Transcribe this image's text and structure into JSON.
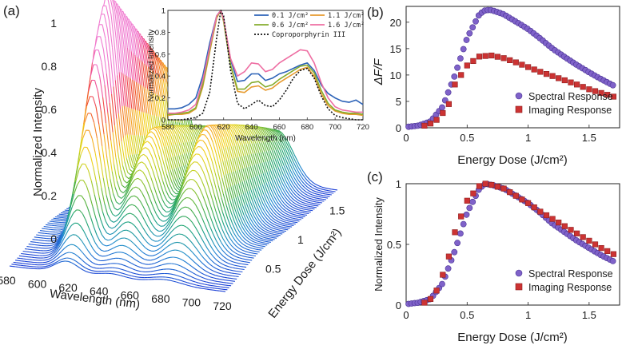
{
  "figure": {
    "panel_labels": [
      "(a)",
      "(b)",
      "(c)"
    ]
  },
  "chart_data": [
    {
      "id": "a",
      "type": "line",
      "subtype": "3d-waterfall",
      "title": "",
      "xlabel": "Wavelength (nm)",
      "ylabel": "Normalized Intensity",
      "zlabel": "Energy Dose (J/cm²)",
      "xticks": [
        "580",
        "600",
        "620",
        "640",
        "660",
        "680",
        "700",
        "720"
      ],
      "yticks": [
        "0",
        "0.2",
        "0.4",
        "0.6",
        "0.8",
        "1"
      ],
      "zticks": [
        "0.5",
        "1",
        "1.5"
      ],
      "x_range": [
        580,
        720
      ],
      "y_range": [
        0,
        1
      ],
      "z_range": [
        0,
        1.75
      ],
      "curve_count": 60,
      "colormap": [
        "#1a3cd6",
        "#1f8ad0",
        "#1aa37a",
        "#55b23b",
        "#b6cf25",
        "#f2d21b",
        "#f59a25",
        "#ef4a2b",
        "#f04a8f",
        "#f07ad0"
      ]
    },
    {
      "id": "a-inset",
      "type": "line",
      "xlabel": "Wavelength (nm)",
      "ylabel": "Normalized Intensity",
      "xticks": [
        "580",
        "600",
        "620",
        "640",
        "660",
        "680",
        "700",
        "720"
      ],
      "yticks": [
        "0",
        "0.2",
        "0.4",
        "0.6",
        "0.8",
        "1"
      ],
      "xlim": [
        580,
        720
      ],
      "ylim": [
        0,
        1
      ],
      "x": [
        580,
        585,
        590,
        595,
        600,
        605,
        610,
        615,
        618,
        620,
        625,
        630,
        635,
        640,
        645,
        650,
        655,
        660,
        665,
        670,
        675,
        680,
        685,
        690,
        695,
        700,
        705,
        710,
        715,
        720
      ],
      "series": [
        {
          "name": "0.1 J/cm²",
          "color": "#2d63b8",
          "dash": false,
          "values": [
            0.1,
            0.1,
            0.11,
            0.14,
            0.2,
            0.4,
            0.7,
            0.95,
            1.0,
            0.92,
            0.55,
            0.35,
            0.36,
            0.42,
            0.42,
            0.36,
            0.38,
            0.42,
            0.44,
            0.47,
            0.5,
            0.52,
            0.45,
            0.32,
            0.24,
            0.2,
            0.17,
            0.16,
            0.18,
            0.14
          ]
        },
        {
          "name": "1.1 J/cm²",
          "color": "#e69a2e",
          "dash": false,
          "values": [
            0.04,
            0.05,
            0.05,
            0.06,
            0.1,
            0.3,
            0.62,
            0.93,
            1.0,
            0.9,
            0.5,
            0.26,
            0.25,
            0.3,
            0.31,
            0.27,
            0.29,
            0.34,
            0.38,
            0.42,
            0.46,
            0.48,
            0.4,
            0.24,
            0.13,
            0.08,
            0.06,
            0.05,
            0.05,
            0.04
          ]
        },
        {
          "name": "0.6 J/cm²",
          "color": "#86ad2e",
          "dash": false,
          "values": [
            0.05,
            0.05,
            0.06,
            0.07,
            0.11,
            0.32,
            0.64,
            0.94,
            1.0,
            0.9,
            0.5,
            0.28,
            0.28,
            0.34,
            0.35,
            0.3,
            0.32,
            0.37,
            0.41,
            0.45,
            0.49,
            0.5,
            0.43,
            0.27,
            0.15,
            0.09,
            0.07,
            0.06,
            0.06,
            0.05
          ]
        },
        {
          "name": "1.6 J/cm²",
          "color": "#ee6fa3",
          "dash": false,
          "values": [
            0.06,
            0.06,
            0.07,
            0.09,
            0.14,
            0.36,
            0.66,
            0.95,
            1.0,
            0.92,
            0.56,
            0.4,
            0.44,
            0.52,
            0.51,
            0.44,
            0.46,
            0.52,
            0.56,
            0.6,
            0.64,
            0.63,
            0.52,
            0.34,
            0.2,
            0.12,
            0.09,
            0.08,
            0.07,
            0.07
          ]
        },
        {
          "name": "Coproporphyrin III",
          "color": "#111111",
          "dash": true,
          "values": [
            0.0,
            0.0,
            0.0,
            0.01,
            0.02,
            0.06,
            0.25,
            0.75,
            1.0,
            0.95,
            0.45,
            0.15,
            0.1,
            0.14,
            0.18,
            0.13,
            0.12,
            0.18,
            0.27,
            0.38,
            0.45,
            0.47,
            0.38,
            0.22,
            0.1,
            0.04,
            0.02,
            0.01,
            0.0,
            0.0
          ]
        }
      ]
    },
    {
      "id": "b",
      "type": "scatter",
      "xlabel": "Energy Dose (J/cm²)",
      "ylabel": "ΔF/F",
      "xlim": [
        0,
        1.75
      ],
      "ylim": [
        0,
        23
      ],
      "xticks": [
        "0",
        "0.5",
        "1",
        "1.5"
      ],
      "yticks": [
        "0",
        "5",
        "10",
        "15",
        "20"
      ],
      "legend_position": "bottom-right",
      "series": [
        {
          "name": "Spectral Response",
          "marker": "circle",
          "color": "#7f62c9",
          "x": [
            0.02,
            0.1,
            0.2,
            0.3,
            0.4,
            0.5,
            0.6,
            0.65,
            0.7,
            0.8,
            0.9,
            1.0,
            1.1,
            1.2,
            1.3,
            1.4,
            1.5,
            1.6,
            1.7
          ],
          "y": [
            0.2,
            0.4,
            1.2,
            4.0,
            10.0,
            17.0,
            21.5,
            22.3,
            22.3,
            21.5,
            20.1,
            18.7,
            16.9,
            15.0,
            13.4,
            11.9,
            10.5,
            9.2,
            8.0
          ]
        },
        {
          "name": "Imaging Response",
          "marker": "square",
          "color": "#cc3333",
          "x": [
            0.15,
            0.2,
            0.25,
            0.3,
            0.35,
            0.4,
            0.5,
            0.6,
            0.7,
            0.8,
            0.9,
            1.0,
            1.1,
            1.2,
            1.3,
            1.4,
            1.5,
            1.6,
            1.7
          ],
          "y": [
            0.4,
            0.8,
            1.5,
            2.8,
            4.5,
            8.2,
            11.8,
            13.5,
            13.7,
            13.2,
            12.4,
            11.5,
            10.6,
            9.8,
            9.0,
            8.2,
            7.3,
            6.6,
            5.9
          ]
        }
      ]
    },
    {
      "id": "c",
      "type": "scatter",
      "xlabel": "Energy Dose (J/cm²)",
      "ylabel": "Normalized Intensity",
      "xlim": [
        0,
        1.75
      ],
      "ylim": [
        0,
        1
      ],
      "xticks": [
        "0",
        "0.5",
        "1",
        "1.5"
      ],
      "yticks": [
        "0",
        "0.5",
        "1"
      ],
      "legend_position": "bottom-right",
      "series": [
        {
          "name": "Spectral Response",
          "marker": "circle",
          "color": "#7f62c9",
          "x": [
            0.02,
            0.1,
            0.2,
            0.3,
            0.4,
            0.5,
            0.6,
            0.65,
            0.7,
            0.8,
            0.9,
            1.0,
            1.1,
            1.2,
            1.3,
            1.4,
            1.5,
            1.6,
            1.7
          ],
          "y": [
            0.01,
            0.02,
            0.05,
            0.18,
            0.45,
            0.76,
            0.96,
            1.0,
            0.99,
            0.96,
            0.9,
            0.84,
            0.76,
            0.67,
            0.6,
            0.53,
            0.47,
            0.41,
            0.36
          ]
        },
        {
          "name": "Imaging Response",
          "marker": "square",
          "color": "#cc3333",
          "x": [
            0.15,
            0.2,
            0.25,
            0.3,
            0.35,
            0.4,
            0.5,
            0.6,
            0.65,
            0.7,
            0.8,
            0.9,
            1.0,
            1.1,
            1.2,
            1.3,
            1.4,
            1.5,
            1.6,
            1.7
          ],
          "y": [
            0.02,
            0.05,
            0.12,
            0.25,
            0.4,
            0.6,
            0.86,
            0.98,
            1.0,
            0.99,
            0.96,
            0.9,
            0.84,
            0.77,
            0.71,
            0.65,
            0.59,
            0.53,
            0.47,
            0.42
          ]
        }
      ]
    }
  ]
}
